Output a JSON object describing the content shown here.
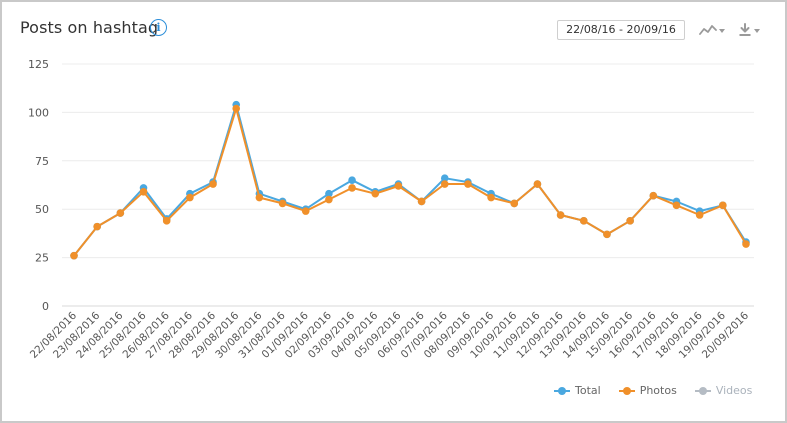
{
  "header": {
    "title": "Posts on hashtag",
    "info_icon": "info-icon",
    "date_range": "22/08/16 - 20/09/16",
    "chart_type_icon": "line-chart-icon",
    "download_icon": "download-icon"
  },
  "chart_data": {
    "type": "line",
    "title": "Posts on hashtag",
    "xlabel": "",
    "ylabel": "",
    "ylim": [
      0,
      125
    ],
    "yticks": [
      0,
      25,
      50,
      75,
      100,
      125
    ],
    "grid": true,
    "legend_position": "bottom-right",
    "categories": [
      "22/08/2016",
      "23/08/2016",
      "24/08/2016",
      "25/08/2016",
      "26/08/2016",
      "27/08/2016",
      "28/08/2016",
      "29/08/2016",
      "30/08/2016",
      "31/08/2016",
      "01/09/2016",
      "02/09/2016",
      "03/09/2016",
      "04/09/2016",
      "05/09/2016",
      "06/09/2016",
      "07/09/2016",
      "08/09/2016",
      "09/09/2016",
      "10/09/2016",
      "11/09/2016",
      "12/09/2016",
      "13/09/2016",
      "14/09/2016",
      "15/09/2016",
      "16/09/2016",
      "17/09/2016",
      "18/09/2016",
      "19/09/2016",
      "20/09/2016"
    ],
    "series": [
      {
        "name": "Total",
        "color": "#4aa8e0",
        "values": [
          26,
          41,
          48,
          61,
          45,
          58,
          64,
          104,
          58,
          54,
          50,
          58,
          65,
          59,
          63,
          54,
          66,
          64,
          58,
          53,
          63,
          47,
          44,
          37,
          44,
          57,
          54,
          49,
          52,
          33
        ]
      },
      {
        "name": "Photos",
        "color": "#f0902a",
        "values": [
          26,
          41,
          48,
          59,
          44,
          56,
          63,
          102,
          56,
          53,
          49,
          55,
          61,
          58,
          62,
          54,
          63,
          63,
          56,
          53,
          63,
          47,
          44,
          37,
          44,
          57,
          52,
          47,
          52,
          32
        ]
      },
      {
        "name": "Videos",
        "color": "#b5bcc4",
        "values": [
          0,
          0,
          0,
          0,
          0,
          0,
          0,
          0,
          0,
          0,
          0,
          0,
          0,
          0,
          0,
          0,
          0,
          0,
          0,
          0,
          0,
          0,
          0,
          0,
          0,
          0,
          0,
          0,
          0,
          0
        ]
      }
    ]
  }
}
